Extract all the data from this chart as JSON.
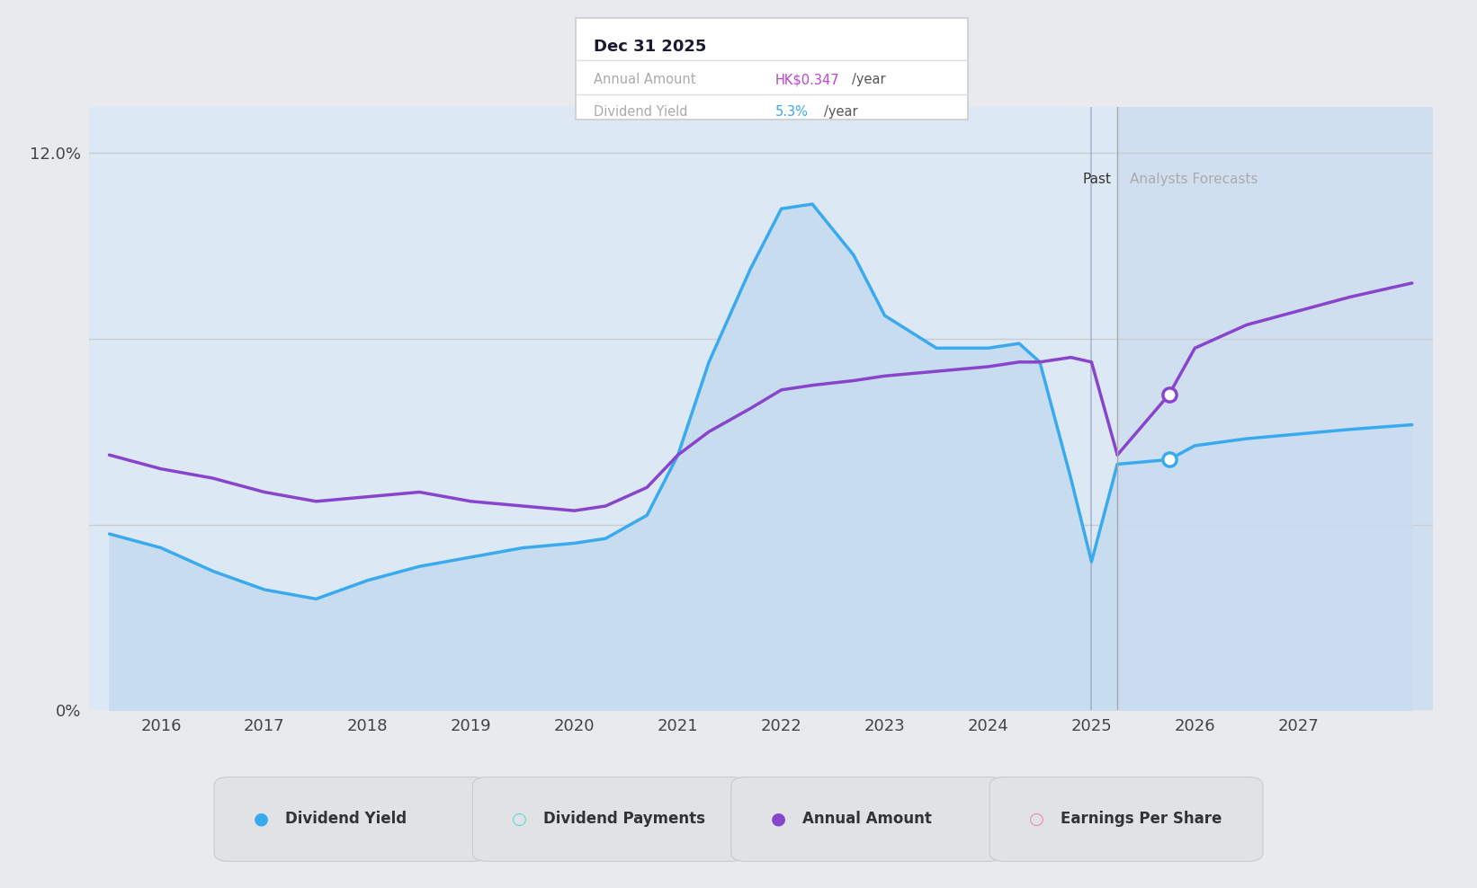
{
  "bg_color": "#e8eaed",
  "chart_bg_color": "#dce8f4",
  "fill_color": "#c8dcf0",
  "forecast_bg_color": "#d0dff0",
  "grid_color": "#c8cdd4",
  "dividend_yield_color": "#3aaaee",
  "annual_amount_color": "#8844cc",
  "years_past": [
    2015.5,
    2016.0,
    2016.5,
    2017.0,
    2017.5,
    2018.0,
    2018.5,
    2019.0,
    2019.5,
    2020.0,
    2020.3,
    2020.7,
    2021.0,
    2021.3,
    2021.7,
    2022.0,
    2022.3,
    2022.7,
    2023.0,
    2023.5,
    2024.0,
    2024.3,
    2024.5,
    2024.8,
    2025.0,
    2025.25
  ],
  "dividend_yield": [
    3.8,
    3.5,
    3.0,
    2.6,
    2.4,
    2.8,
    3.1,
    3.3,
    3.5,
    3.6,
    3.7,
    4.2,
    5.5,
    7.5,
    9.5,
    10.8,
    10.9,
    9.8,
    8.5,
    7.8,
    7.8,
    7.9,
    7.5,
    5.0,
    3.2,
    5.3
  ],
  "annual_amount_past": [
    5.5,
    5.2,
    5.0,
    4.7,
    4.5,
    4.6,
    4.7,
    4.5,
    4.4,
    4.3,
    4.4,
    4.8,
    5.5,
    6.0,
    6.5,
    6.9,
    7.0,
    7.1,
    7.2,
    7.3,
    7.4,
    7.5,
    7.5,
    7.6,
    7.5,
    5.5
  ],
  "years_forecast": [
    2025.25,
    2025.75,
    2026.0,
    2026.5,
    2027.0,
    2027.5,
    2028.1
  ],
  "dividend_yield_forecast": [
    5.3,
    5.4,
    5.7,
    5.85,
    5.95,
    6.05,
    6.15
  ],
  "annual_amount_forecast": [
    5.5,
    6.8,
    7.8,
    8.3,
    8.6,
    8.9,
    9.2
  ],
  "past_boundary": 2025.25,
  "xmin": 2015.3,
  "xmax": 2028.3,
  "ylim": [
    0,
    13.0
  ],
  "x_ticks": [
    2016,
    2017,
    2018,
    2019,
    2020,
    2021,
    2022,
    2023,
    2024,
    2025,
    2026,
    2027
  ],
  "tooltip_date": "Dec 31 2025",
  "tooltip_annual_label": "Annual Amount",
  "tooltip_annual_value": "HK$0.347",
  "tooltip_annual_suffix": "/year",
  "tooltip_annual_color": "#bb44cc",
  "tooltip_yield_label": "Dividend Yield",
  "tooltip_yield_value": "5.3%",
  "tooltip_yield_suffix": "/year",
  "tooltip_yield_color": "#3aaaee",
  "legend": [
    {
      "label": "Dividend Yield",
      "color": "#3aaaee",
      "filled": true
    },
    {
      "label": "Dividend Payments",
      "color": "#55ddcc",
      "filled": false
    },
    {
      "label": "Annual Amount",
      "color": "#8844cc",
      "filled": true
    },
    {
      "label": "Earnings Per Share",
      "color": "#ee88aa",
      "filled": false
    }
  ]
}
